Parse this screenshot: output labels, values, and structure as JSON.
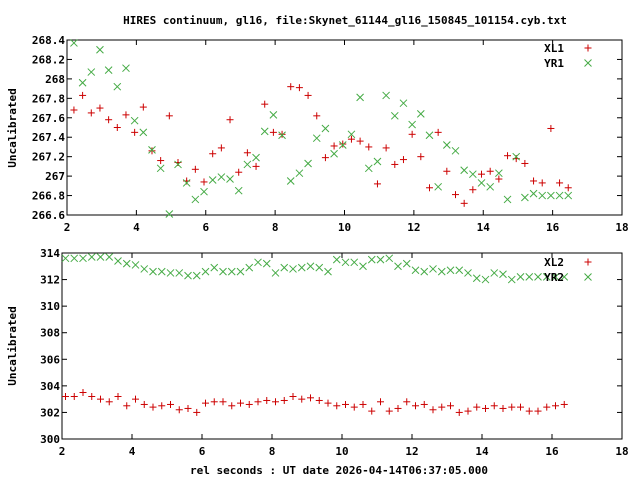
{
  "chart_data": [
    {
      "type": "scatter",
      "title": "HIRES continuum, gl16, file:Skynet_61144_gl16_150845_101154.cyb.txt",
      "xlabel": "",
      "ylabel": "Uncalibrated",
      "xlim": [
        2,
        18
      ],
      "ylim": [
        266.6,
        268.4
      ],
      "xticks": [
        2,
        4,
        6,
        8,
        10,
        12,
        14,
        16,
        18
      ],
      "yticks": [
        266.6,
        266.8,
        267,
        267.2,
        267.4,
        267.6,
        267.8,
        268,
        268.2,
        268.4
      ],
      "ytick_labels": [
        "266.6",
        "266.8",
        "267",
        "267.2",
        "267.4",
        "267.6",
        "267.8",
        "268",
        "268.2",
        "268.4"
      ],
      "legend_position": "top-right",
      "grid": false,
      "series": [
        {
          "name": "XL1",
          "marker": "plus",
          "color": "#cc0000",
          "x": [
            2.2,
            2.45,
            2.7,
            2.95,
            3.2,
            3.45,
            3.7,
            3.95,
            4.2,
            4.45,
            4.7,
            4.95,
            5.2,
            5.45,
            5.7,
            5.95,
            6.2,
            6.45,
            6.7,
            6.95,
            7.2,
            7.45,
            7.7,
            7.95,
            8.2,
            8.45,
            8.7,
            8.95,
            9.2,
            9.45,
            9.7,
            9.95,
            10.2,
            10.45,
            10.7,
            10.95,
            11.2,
            11.45,
            11.7,
            11.95,
            12.2,
            12.45,
            12.7,
            12.95,
            13.2,
            13.45,
            13.7,
            13.95,
            14.2,
            14.45,
            14.7,
            14.95,
            15.2,
            15.45,
            15.7,
            15.95,
            16.2,
            16.45
          ],
          "y": [
            267.68,
            267.83,
            267.65,
            267.7,
            267.58,
            267.5,
            267.63,
            267.45,
            267.71,
            267.26,
            267.16,
            267.62,
            267.14,
            266.95,
            267.07,
            266.94,
            267.23,
            267.29,
            267.58,
            267.04,
            267.24,
            267.1,
            267.74,
            267.45,
            267.43,
            267.92,
            267.91,
            267.83,
            267.62,
            267.19,
            267.31,
            267.33,
            267.38,
            267.36,
            267.3,
            266.92,
            267.29,
            267.12,
            267.17,
            267.43,
            267.2,
            266.88,
            267.45,
            267.05,
            266.81,
            266.72,
            266.86,
            267.02,
            267.05,
            266.97,
            267.21,
            267.18,
            267.13,
            266.95,
            266.93,
            267.49,
            266.93,
            266.88
          ]
        },
        {
          "name": "YR1",
          "marker": "cross",
          "color": "#44aa44",
          "x": [
            2.2,
            2.45,
            2.7,
            2.95,
            3.2,
            3.45,
            3.7,
            3.95,
            4.2,
            4.45,
            4.7,
            4.95,
            5.2,
            5.45,
            5.7,
            5.95,
            6.2,
            6.45,
            6.7,
            6.95,
            7.2,
            7.45,
            7.7,
            7.95,
            8.2,
            8.45,
            8.7,
            8.95,
            9.2,
            9.45,
            9.7,
            9.95,
            10.2,
            10.45,
            10.7,
            10.95,
            11.2,
            11.45,
            11.7,
            11.95,
            12.2,
            12.45,
            12.7,
            12.95,
            13.2,
            13.45,
            13.7,
            13.95,
            14.2,
            14.45,
            14.7,
            14.95,
            15.2,
            15.45,
            15.7,
            15.95,
            16.2,
            16.45
          ],
          "y": [
            268.37,
            267.96,
            268.07,
            268.3,
            268.09,
            267.92,
            268.11,
            267.57,
            267.45,
            267.27,
            267.08,
            266.61,
            267.12,
            266.93,
            266.76,
            266.84,
            266.96,
            266.99,
            266.97,
            266.85,
            267.12,
            267.19,
            267.46,
            267.63,
            267.42,
            266.95,
            267.03,
            267.13,
            267.39,
            267.49,
            267.23,
            267.32,
            267.43,
            267.81,
            267.08,
            267.15,
            267.83,
            267.62,
            267.75,
            267.53,
            267.64,
            267.42,
            266.89,
            267.32,
            267.26,
            267.06,
            267.02,
            266.93,
            266.89,
            267.03,
            266.76,
            267.2,
            266.78,
            266.82,
            266.8,
            266.8,
            266.8,
            266.8
          ]
        }
      ]
    },
    {
      "type": "scatter",
      "title": "",
      "xlabel": "rel seconds : UT date 2026-04-14T06:37:05.000",
      "ylabel": "Uncalibrated",
      "xlim": [
        2,
        18
      ],
      "ylim": [
        300,
        314
      ],
      "xticks": [
        2,
        4,
        6,
        8,
        10,
        12,
        14,
        16,
        18
      ],
      "yticks": [
        300,
        302,
        304,
        306,
        308,
        310,
        312,
        314
      ],
      "ytick_labels": [
        "300",
        "302",
        "304",
        "306",
        "308",
        "310",
        "312",
        "314"
      ],
      "legend_position": "top-right",
      "grid": false,
      "series": [
        {
          "name": "XL2",
          "marker": "plus",
          "color": "#cc0000",
          "x": [
            2.1,
            2.35,
            2.6,
            2.85,
            3.1,
            3.35,
            3.6,
            3.85,
            4.1,
            4.35,
            4.6,
            4.85,
            5.1,
            5.35,
            5.6,
            5.85,
            6.1,
            6.35,
            6.6,
            6.85,
            7.1,
            7.35,
            7.6,
            7.85,
            8.1,
            8.35,
            8.6,
            8.85,
            9.1,
            9.35,
            9.6,
            9.85,
            10.1,
            10.35,
            10.6,
            10.85,
            11.1,
            11.35,
            11.6,
            11.85,
            12.1,
            12.35,
            12.6,
            12.85,
            13.1,
            13.35,
            13.6,
            13.85,
            14.1,
            14.35,
            14.6,
            14.85,
            15.1,
            15.35,
            15.6,
            15.85,
            16.1,
            16.35
          ],
          "y": [
            303.2,
            303.2,
            303.5,
            303.2,
            303.0,
            302.8,
            303.2,
            302.5,
            303.0,
            302.6,
            302.4,
            302.5,
            302.6,
            302.2,
            302.3,
            302.0,
            302.7,
            302.8,
            302.8,
            302.5,
            302.7,
            302.6,
            302.8,
            302.9,
            302.8,
            302.9,
            303.2,
            303.0,
            303.1,
            302.9,
            302.7,
            302.5,
            302.6,
            302.4,
            302.6,
            302.1,
            302.8,
            302.1,
            302.3,
            302.8,
            302.5,
            302.6,
            302.2,
            302.4,
            302.5,
            302.0,
            302.1,
            302.4,
            302.3,
            302.5,
            302.3,
            302.4,
            302.4,
            302.1,
            302.1,
            302.4,
            302.5,
            302.6
          ]
        },
        {
          "name": "YR2",
          "marker": "cross",
          "color": "#44aa44",
          "x": [
            2.1,
            2.35,
            2.6,
            2.85,
            3.1,
            3.35,
            3.6,
            3.85,
            4.1,
            4.35,
            4.6,
            4.85,
            5.1,
            5.35,
            5.6,
            5.85,
            6.1,
            6.35,
            6.6,
            6.85,
            7.1,
            7.35,
            7.6,
            7.85,
            8.1,
            8.35,
            8.6,
            8.85,
            9.1,
            9.35,
            9.6,
            9.85,
            10.1,
            10.35,
            10.6,
            10.85,
            11.1,
            11.35,
            11.6,
            11.85,
            12.1,
            12.35,
            12.6,
            12.85,
            13.1,
            13.35,
            13.6,
            13.85,
            14.1,
            14.35,
            14.6,
            14.85,
            15.1,
            15.35,
            15.6,
            15.85,
            16.1,
            16.35
          ],
          "y": [
            313.6,
            313.6,
            313.6,
            313.7,
            313.7,
            313.7,
            313.4,
            313.2,
            313.1,
            312.8,
            312.6,
            312.6,
            312.5,
            312.5,
            312.3,
            312.3,
            312.6,
            312.9,
            312.6,
            312.6,
            312.6,
            312.9,
            313.3,
            313.2,
            312.5,
            312.9,
            312.8,
            312.9,
            313.0,
            312.9,
            312.6,
            313.5,
            313.3,
            313.3,
            313.0,
            313.5,
            313.5,
            313.6,
            313.0,
            313.2,
            312.7,
            312.6,
            312.8,
            312.6,
            312.7,
            312.7,
            312.5,
            312.1,
            312.0,
            312.5,
            312.4,
            312.0,
            312.2,
            312.2,
            312.2,
            312.2,
            312.2,
            312.2
          ]
        }
      ]
    }
  ]
}
